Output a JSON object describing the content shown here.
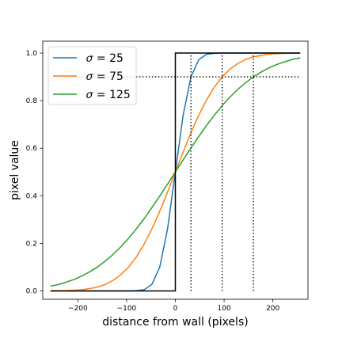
{
  "chart_data": {
    "type": "line",
    "xlabel": "distance from wall (pixels)",
    "ylabel": "pixel value",
    "xlim": [
      -272,
      272
    ],
    "ylim": [
      -0.035,
      1.05
    ],
    "grid": false,
    "legend_placement": "top-left",
    "x_ticks": [
      -200,
      -100,
      0,
      100,
      200
    ],
    "x_tick_labels": [
      "−200",
      "−100",
      "0",
      "100",
      "200"
    ],
    "y_ticks": [
      0.0,
      0.2,
      0.4,
      0.6,
      0.8,
      1.0
    ],
    "y_tick_labels": [
      "0.0",
      "0.2",
      "0.4",
      "0.6",
      "0.8",
      "1.0"
    ],
    "x": [
      -256,
      -240,
      -224,
      -208,
      -192,
      -176,
      -160,
      -144,
      -128,
      -112,
      -96,
      -80,
      -64,
      -48,
      -32,
      -16,
      0,
      16,
      32,
      48,
      64,
      80,
      96,
      112,
      128,
      144,
      160,
      176,
      192,
      208,
      224,
      240,
      256
    ],
    "series": [
      {
        "name": "σ = 25",
        "legend_label": "𝜎 = 25",
        "color": "#1f77b4",
        "values": [
          0.0,
          0.0,
          0.0,
          0.0,
          0.0,
          0.0,
          0.0,
          0.0,
          0.0,
          0.0,
          0.0,
          0.001,
          0.005,
          0.028,
          0.1,
          0.261,
          0.5,
          0.739,
          0.9,
          0.972,
          0.995,
          0.999,
          1.0,
          1.0,
          1.0,
          1.0,
          1.0,
          1.0,
          1.0,
          1.0,
          1.0,
          1.0,
          1.0
        ]
      },
      {
        "name": "σ = 75",
        "legend_label": "𝜎 = 75",
        "color": "#ff7f0e",
        "values": [
          0.0,
          0.001,
          0.001,
          0.003,
          0.005,
          0.01,
          0.016,
          0.027,
          0.044,
          0.068,
          0.1,
          0.143,
          0.197,
          0.261,
          0.335,
          0.416,
          0.5,
          0.584,
          0.665,
          0.739,
          0.803,
          0.857,
          0.9,
          0.932,
          0.956,
          0.973,
          0.984,
          0.99,
          0.995,
          0.997,
          0.999,
          0.999,
          1.0
        ]
      },
      {
        "name": "σ = 125",
        "legend_label": "𝜎 = 125",
        "color": "#2ca02c",
        "values": [
          0.02,
          0.027,
          0.037,
          0.048,
          0.062,
          0.08,
          0.1,
          0.125,
          0.153,
          0.185,
          0.221,
          0.261,
          0.304,
          0.351,
          0.399,
          0.449,
          0.5,
          0.551,
          0.601,
          0.649,
          0.696,
          0.739,
          0.779,
          0.815,
          0.847,
          0.875,
          0.9,
          0.92,
          0.938,
          0.952,
          0.963,
          0.973,
          0.98
        ]
      },
      {
        "name": "step",
        "color": "#000000",
        "step": {
          "x": [
            -256,
            0,
            0,
            256
          ],
          "values": [
            0,
            0,
            1,
            1
          ]
        }
      }
    ],
    "reference_lines": {
      "horizontal": {
        "y": 0.9,
        "x_range": [
          -256,
          256
        ]
      },
      "vertical": [
        {
          "x": 32,
          "y_range": [
            0,
            1
          ]
        },
        {
          "x": 96,
          "y_range": [
            0,
            1
          ]
        },
        {
          "x": 160,
          "y_range": [
            0,
            1
          ]
        }
      ]
    }
  }
}
